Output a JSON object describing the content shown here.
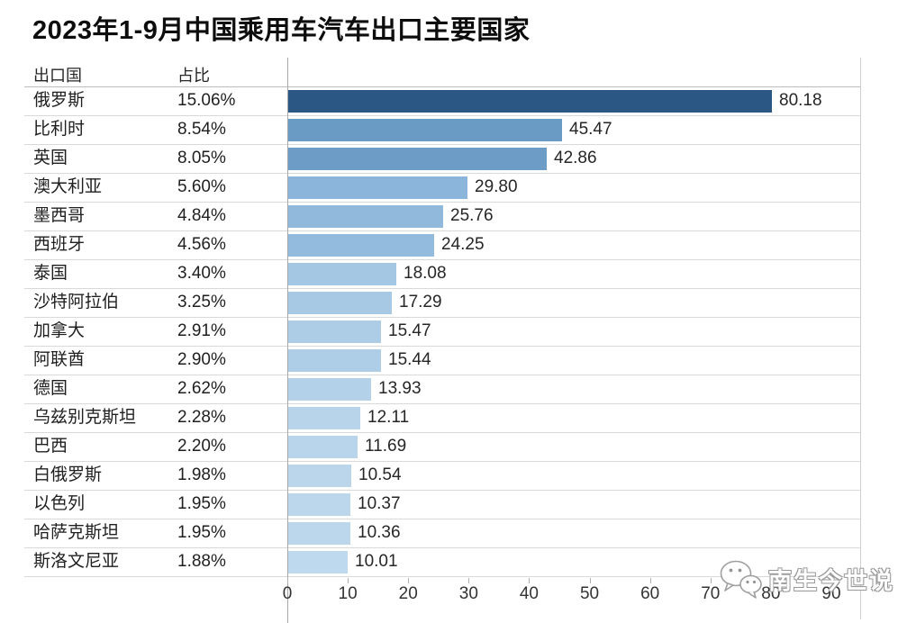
{
  "page": {
    "watermark_text": "南生今世说"
  },
  "table": {
    "col_country": "出口国",
    "col_share": "占比"
  },
  "chart_data": {
    "type": "bar",
    "orientation": "horizontal",
    "title": "2023年1-9月中国乘用车汽车出口主要国家",
    "xlabel": "",
    "ylabel": "",
    "xlim": [
      0,
      95
    ],
    "x_ticks": [
      0,
      10,
      20,
      30,
      40,
      50,
      60,
      70,
      80,
      90
    ],
    "x_tick_labels": [
      "0",
      "10",
      "20",
      "30",
      "40",
      "50",
      "60",
      "70",
      "80",
      "90"
    ],
    "grid": false,
    "legend": "none",
    "categories": [
      "俄罗斯",
      "比利时",
      "英国",
      "澳大利亚",
      "墨西哥",
      "西班牙",
      "泰国",
      "沙特阿拉伯",
      "加拿大",
      "阿联酋",
      "德国",
      "乌兹别克斯坦",
      "巴西",
      "白俄罗斯",
      "以色列",
      "哈萨克斯坦",
      "斯洛文尼亚"
    ],
    "share_percent": [
      "15.06%",
      "8.54%",
      "8.05%",
      "5.60%",
      "4.84%",
      "4.56%",
      "3.40%",
      "3.25%",
      "2.91%",
      "2.90%",
      "2.62%",
      "2.28%",
      "2.20%",
      "1.98%",
      "1.95%",
      "1.95%",
      "1.88%"
    ],
    "values": [
      80.18,
      45.47,
      42.86,
      29.8,
      25.76,
      24.25,
      18.08,
      17.29,
      15.47,
      15.44,
      13.93,
      12.11,
      11.69,
      10.54,
      10.37,
      10.36,
      10.01
    ],
    "value_labels": [
      "80.18",
      "45.47",
      "42.86",
      "29.80",
      "25.76",
      "24.25",
      "18.08",
      "17.29",
      "15.47",
      "15.44",
      "13.93",
      "12.11",
      "11.69",
      "10.54",
      "10.37",
      "10.36",
      "10.01"
    ],
    "bar_colors": [
      "#2A5783",
      "#6A9BC5",
      "#6D9DC7",
      "#8BB5DA",
      "#90B9DC",
      "#93BBDD",
      "#A4C7E3",
      "#A7C9E4",
      "#ADCDE7",
      "#AECEE7",
      "#B3D1E9",
      "#B7D4EA",
      "#B9D5EB",
      "#BBD6EB",
      "#BCD7EC",
      "#BCD7EC",
      "#BED8ED"
    ],
    "accent_dark_blue": "#2A5783",
    "accent_light_blue": "#BED8ED"
  }
}
